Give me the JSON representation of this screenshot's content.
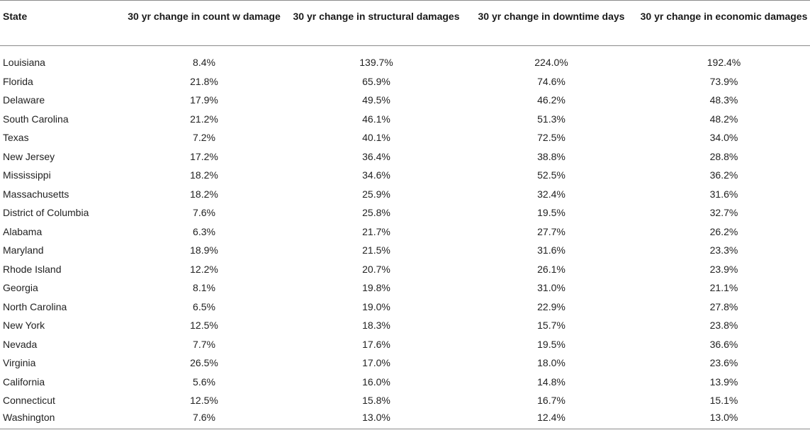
{
  "table": {
    "headers": [
      "State",
      "30 yr change in count w damage",
      "30 yr change in structural damages",
      "30 yr change in downtime days",
      "30 yr change in economic damages"
    ],
    "rows": [
      [
        "Louisiana",
        "8.4%",
        "139.7%",
        "224.0%",
        "192.4%"
      ],
      [
        "Florida",
        "21.8%",
        "65.9%",
        "74.6%",
        "73.9%"
      ],
      [
        "Delaware",
        "17.9%",
        "49.5%",
        "46.2%",
        "48.3%"
      ],
      [
        "South Carolina",
        "21.2%",
        "46.1%",
        "51.3%",
        "48.2%"
      ],
      [
        "Texas",
        "7.2%",
        "40.1%",
        "72.5%",
        "34.0%"
      ],
      [
        "New Jersey",
        "17.2%",
        "36.4%",
        "38.8%",
        "28.8%"
      ],
      [
        "Mississippi",
        "18.2%",
        "34.6%",
        "52.5%",
        "36.2%"
      ],
      [
        "Massachusetts",
        "18.2%",
        "25.9%",
        "32.4%",
        "31.6%"
      ],
      [
        "District of Columbia",
        "7.6%",
        "25.8%",
        "19.5%",
        "32.7%"
      ],
      [
        "Alabama",
        "6.3%",
        "21.7%",
        "27.7%",
        "26.2%"
      ],
      [
        "Maryland",
        "18.9%",
        "21.5%",
        "31.6%",
        "23.3%"
      ],
      [
        "Rhode Island",
        "12.2%",
        "20.7%",
        "26.1%",
        "23.9%"
      ],
      [
        "Georgia",
        "8.1%",
        "19.8%",
        "31.0%",
        "21.1%"
      ],
      [
        "North Carolina",
        "6.5%",
        "19.0%",
        "22.9%",
        "27.8%"
      ],
      [
        "New York",
        "12.5%",
        "18.3%",
        "15.7%",
        "23.8%"
      ],
      [
        "Nevada",
        "7.7%",
        "17.6%",
        "19.5%",
        "36.6%"
      ],
      [
        "Virginia",
        "26.5%",
        "17.0%",
        "18.0%",
        "23.6%"
      ],
      [
        "California",
        "5.6%",
        "16.0%",
        "14.8%",
        "13.9%"
      ],
      [
        "Connecticut",
        "12.5%",
        "15.8%",
        "16.7%",
        "15.1%"
      ],
      [
        "Washington",
        "7.6%",
        "13.0%",
        "12.4%",
        "13.0%"
      ]
    ]
  }
}
